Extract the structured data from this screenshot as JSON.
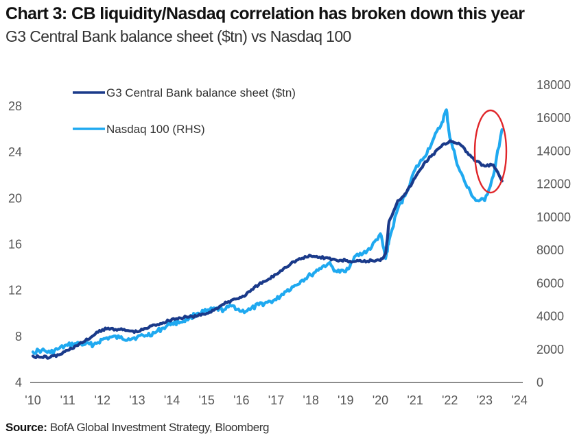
{
  "header": {
    "title": "Chart 3: CB liquidity/Nasdaq correlation has broken down this year",
    "subtitle": "G3 Central Bank balance sheet ($tn) vs Nasdaq 100"
  },
  "footer": {
    "source_label": "Source:",
    "source_text": "BofA Global Investment Strategy, Bloomberg"
  },
  "colors": {
    "g3": "#1a3a8a",
    "nasdaq": "#1fa9f0",
    "highlight": "#e0262a",
    "axis": "#666666",
    "tick_text": "#555555"
  },
  "chart_data": {
    "type": "line",
    "title": "Chart 3: CB liquidity/Nasdaq correlation has broken down this year",
    "subtitle": "G3 Central Bank balance sheet ($tn) vs Nasdaq 100",
    "xlabel": "",
    "ylabel": "G3 Central Bank balance sheet ($tn)",
    "y2label": "Nasdaq 100 (RHS)",
    "x_ticks": [
      "'10",
      "'11",
      "'12",
      "'13",
      "'14",
      "'15",
      "'16",
      "'17",
      "'18",
      "'19",
      "'20",
      "'21",
      "'22",
      "'23",
      "'24"
    ],
    "xlim": [
      2010,
      2024
    ],
    "ylim": [
      4,
      28
    ],
    "y_ticks": [
      4,
      8,
      12,
      16,
      20,
      24,
      28
    ],
    "y2lim": [
      0,
      18000
    ],
    "y2_ticks": [
      0,
      2000,
      4000,
      6000,
      8000,
      10000,
      12000,
      14000,
      16000,
      18000
    ],
    "grid": false,
    "legend_position": "top-left",
    "annotation": "red ellipse around 2023 divergence",
    "series": [
      {
        "name": "G3 Central Bank balance sheet ($tn)",
        "axis": "left",
        "x": [
          2010.0,
          2010.25,
          2010.5,
          2010.75,
          2011.0,
          2011.25,
          2011.5,
          2011.75,
          2012.0,
          2012.25,
          2012.5,
          2012.75,
          2013.0,
          2013.25,
          2013.5,
          2013.75,
          2014.0,
          2014.25,
          2014.5,
          2014.75,
          2015.0,
          2015.25,
          2015.5,
          2015.75,
          2016.0,
          2016.25,
          2016.5,
          2016.75,
          2017.0,
          2017.25,
          2017.5,
          2017.75,
          2018.0,
          2018.25,
          2018.5,
          2018.75,
          2019.0,
          2019.25,
          2019.5,
          2019.75,
          2020.0,
          2020.15,
          2020.25,
          2020.5,
          2020.75,
          2021.0,
          2021.25,
          2021.5,
          2021.75,
          2022.0,
          2022.25,
          2022.5,
          2022.75,
          2023.0,
          2023.25,
          2023.5
        ],
        "values": [
          6.3,
          6.2,
          6.2,
          6.4,
          6.8,
          7.2,
          7.6,
          8.1,
          8.6,
          8.7,
          8.6,
          8.5,
          8.4,
          8.7,
          9.0,
          9.2,
          9.5,
          9.6,
          9.7,
          9.8,
          10.0,
          10.4,
          10.8,
          11.2,
          11.4,
          11.9,
          12.5,
          12.9,
          13.4,
          14.0,
          14.5,
          14.8,
          15.0,
          14.9,
          14.8,
          14.6,
          14.6,
          14.5,
          14.5,
          14.6,
          14.6,
          15.2,
          18.0,
          19.8,
          20.5,
          21.8,
          23.0,
          23.8,
          24.5,
          25.0,
          24.8,
          24.0,
          23.2,
          22.8,
          22.9,
          21.5
        ]
      },
      {
        "name": "Nasdaq 100 (RHS)",
        "axis": "right",
        "x": [
          2010.0,
          2010.25,
          2010.5,
          2010.75,
          2011.0,
          2011.25,
          2011.5,
          2011.75,
          2012.0,
          2012.25,
          2012.5,
          2012.75,
          2013.0,
          2013.25,
          2013.5,
          2013.75,
          2014.0,
          2014.25,
          2014.5,
          2014.75,
          2015.0,
          2015.25,
          2015.5,
          2015.75,
          2016.0,
          2016.25,
          2016.5,
          2016.75,
          2017.0,
          2017.25,
          2017.5,
          2017.75,
          2018.0,
          2018.25,
          2018.5,
          2018.75,
          2019.0,
          2019.25,
          2019.5,
          2019.75,
          2020.0,
          2020.15,
          2020.25,
          2020.5,
          2020.75,
          2021.0,
          2021.25,
          2021.5,
          2021.75,
          2021.9,
          2022.0,
          2022.25,
          2022.5,
          2022.75,
          2023.0,
          2023.25,
          2023.5
        ],
        "values": [
          1850,
          1950,
          1800,
          2050,
          2250,
          2350,
          2300,
          2300,
          2600,
          2750,
          2700,
          2650,
          2750,
          2850,
          3000,
          3300,
          3600,
          3650,
          3900,
          4200,
          4300,
          4450,
          4400,
          4650,
          4300,
          4400,
          4700,
          4850,
          5000,
          5500,
          5800,
          6200,
          6500,
          6900,
          7200,
          6700,
          6700,
          7600,
          7800,
          8200,
          9000,
          7500,
          8600,
          10500,
          11500,
          12900,
          13600,
          14600,
          15600,
          16500,
          14800,
          13000,
          11800,
          11000,
          11000,
          12500,
          15300
        ]
      }
    ]
  }
}
